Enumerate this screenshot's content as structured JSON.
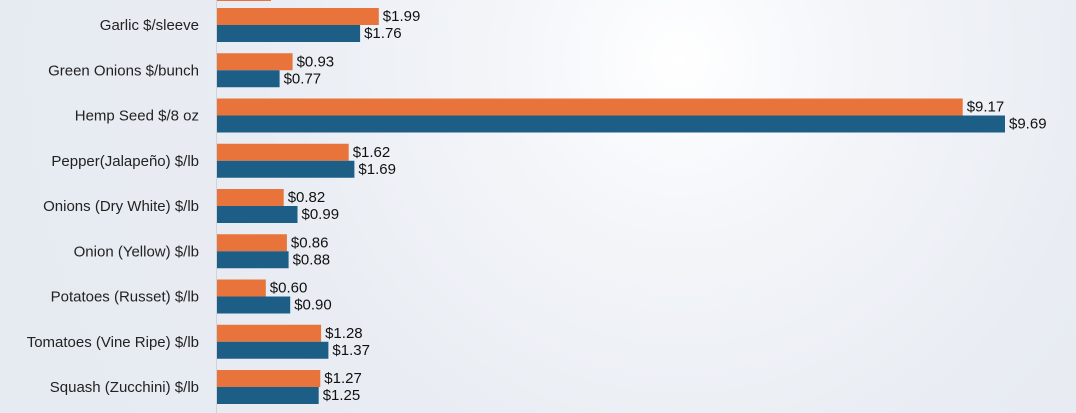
{
  "chart_data": {
    "type": "bar",
    "orientation": "horizontal",
    "categories": [
      "Garlic $/sleeve",
      "Green Onions $/bunch",
      "Hemp Seed $/8 oz",
      "Pepper(Jalapeño) $/lb",
      "Onions (Dry White) $/lb",
      "Onion (Yellow) $/lb",
      "Potatoes (Russet) $/lb",
      "Tomatoes (Vine Ripe) $/lb",
      "Squash (Zucchini) $/lb"
    ],
    "series": [
      {
        "color": "#E8743B",
        "values": [
          1.99,
          0.93,
          9.17,
          1.62,
          0.82,
          0.86,
          0.6,
          1.28,
          1.27
        ],
        "labels": [
          "$1.99",
          "$0.93",
          "$9.17",
          "$1.62",
          "$0.82",
          "$0.86",
          "$0.60",
          "$1.28",
          "$1.27"
        ]
      },
      {
        "color": "#1D5E87",
        "values": [
          1.76,
          0.77,
          9.69,
          1.69,
          0.99,
          0.88,
          0.9,
          1.37,
          1.25
        ],
        "labels": [
          "$1.76",
          "$0.77",
          "$9.69",
          "$1.69",
          "$0.99",
          "$0.88",
          "$0.90",
          "$1.37",
          "$1.25"
        ]
      }
    ],
    "xlim": [
      0,
      10
    ],
    "grid": false,
    "legend": "none"
  }
}
